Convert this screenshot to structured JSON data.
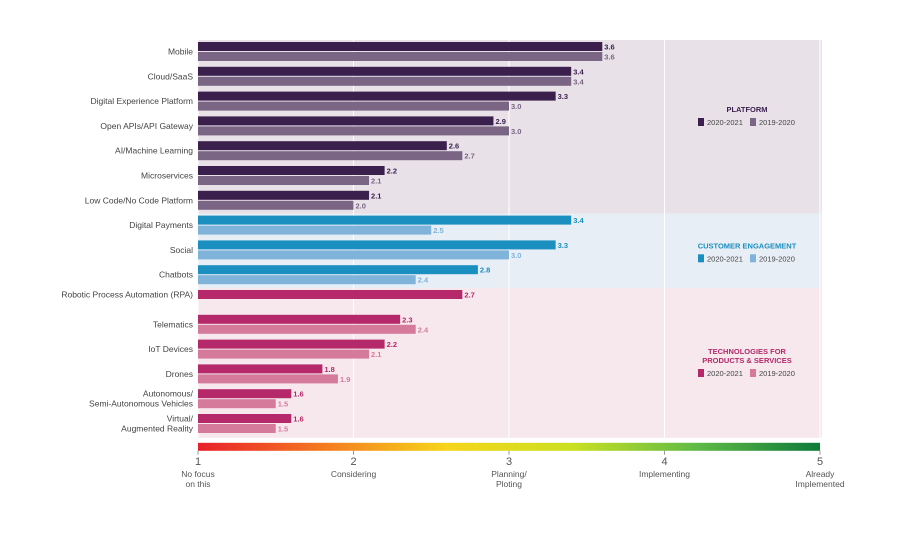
{
  "chart_data": {
    "type": "bar",
    "orientation": "horizontal",
    "xlim": [
      1,
      5
    ],
    "grid": true,
    "scale": {
      "ticks": [
        {
          "value": 1,
          "label": "1",
          "desc": [
            "No focus",
            "on this"
          ]
        },
        {
          "value": 2,
          "label": "2",
          "desc": [
            "Considering"
          ]
        },
        {
          "value": 3,
          "label": "3",
          "desc": [
            "Planning/",
            "Ploting"
          ]
        },
        {
          "value": 4,
          "label": "4",
          "desc": [
            "Implementing"
          ]
        },
        {
          "value": 5,
          "label": "5",
          "desc": [
            "Already",
            "Implemented"
          ]
        }
      ],
      "gradient": [
        "#e8202a",
        "#f47a20",
        "#f6d51a",
        "#cbe021",
        "#5fbb46",
        "#0f7a3a"
      ]
    },
    "groups": [
      {
        "name": "PLATFORM",
        "title_lines": [
          "PLATFORM"
        ],
        "background": "#e8e2e8",
        "title_color": "#3b1f4d",
        "series": [
          {
            "name": "2020-2021",
            "color": "#3b1f4d"
          },
          {
            "name": "2019-2020",
            "color": "#7a6585"
          }
        ],
        "categories": [
          {
            "label": [
              "Mobile"
            ],
            "values": [
              3.6,
              3.6
            ]
          },
          {
            "label": [
              "Cloud/SaaS"
            ],
            "values": [
              3.4,
              3.4
            ]
          },
          {
            "label": [
              "Digital Experience Platform"
            ],
            "values": [
              3.3,
              3.0
            ]
          },
          {
            "label": [
              "Open APIs/API Gateway"
            ],
            "values": [
              2.9,
              3.0
            ]
          },
          {
            "label": [
              "AI/Machine Learning"
            ],
            "values": [
              2.6,
              2.7
            ]
          },
          {
            "label": [
              "Microservices"
            ],
            "values": [
              2.2,
              2.1
            ]
          },
          {
            "label": [
              "Low Code/No Code Platform"
            ],
            "values": [
              2.1,
              2.0
            ]
          }
        ]
      },
      {
        "name": "CUSTOMER ENGAGEMENT",
        "title_lines": [
          "CUSTOMER ENGAGEMENT"
        ],
        "background": "#e8eef6",
        "title_color": "#1a8fc0",
        "series": [
          {
            "name": "2020-2021",
            "color": "#1a8fc0"
          },
          {
            "name": "2019-2020",
            "color": "#7fb3d9"
          }
        ],
        "categories": [
          {
            "label": [
              "Digital Payments"
            ],
            "values": [
              3.4,
              2.5
            ]
          },
          {
            "label": [
              "Social"
            ],
            "values": [
              3.3,
              3.0
            ]
          },
          {
            "label": [
              "Chatbots"
            ],
            "values": [
              2.8,
              2.4
            ]
          }
        ]
      },
      {
        "name": "TECHNOLOGIES FOR PRODUCTS & SERVICES",
        "title_lines": [
          "TECHNOLOGIES FOR",
          "PRODUCTS & SERVICES"
        ],
        "background": "#f6e8ec",
        "title_color": "#b5296a",
        "series": [
          {
            "name": "2020-2021",
            "color": "#b5296a"
          },
          {
            "name": "2019-2020",
            "color": "#d67a9c"
          }
        ],
        "categories": [
          {
            "label": [
              "Robotic Process Automation (RPA)"
            ],
            "values": [
              2.7
            ]
          },
          {
            "label": [
              "Telematics"
            ],
            "values": [
              2.3,
              2.4
            ]
          },
          {
            "label": [
              "IoT Devices"
            ],
            "values": [
              2.2,
              2.1
            ]
          },
          {
            "label": [
              "Drones"
            ],
            "values": [
              1.8,
              1.9
            ]
          },
          {
            "label": [
              "Autonomous/",
              "Semi-Autonomous Vehicles"
            ],
            "values": [
              1.6,
              1.5
            ]
          },
          {
            "label": [
              "Virtual/",
              "Augmented Reality"
            ],
            "values": [
              1.6,
              1.5
            ]
          }
        ]
      }
    ]
  }
}
